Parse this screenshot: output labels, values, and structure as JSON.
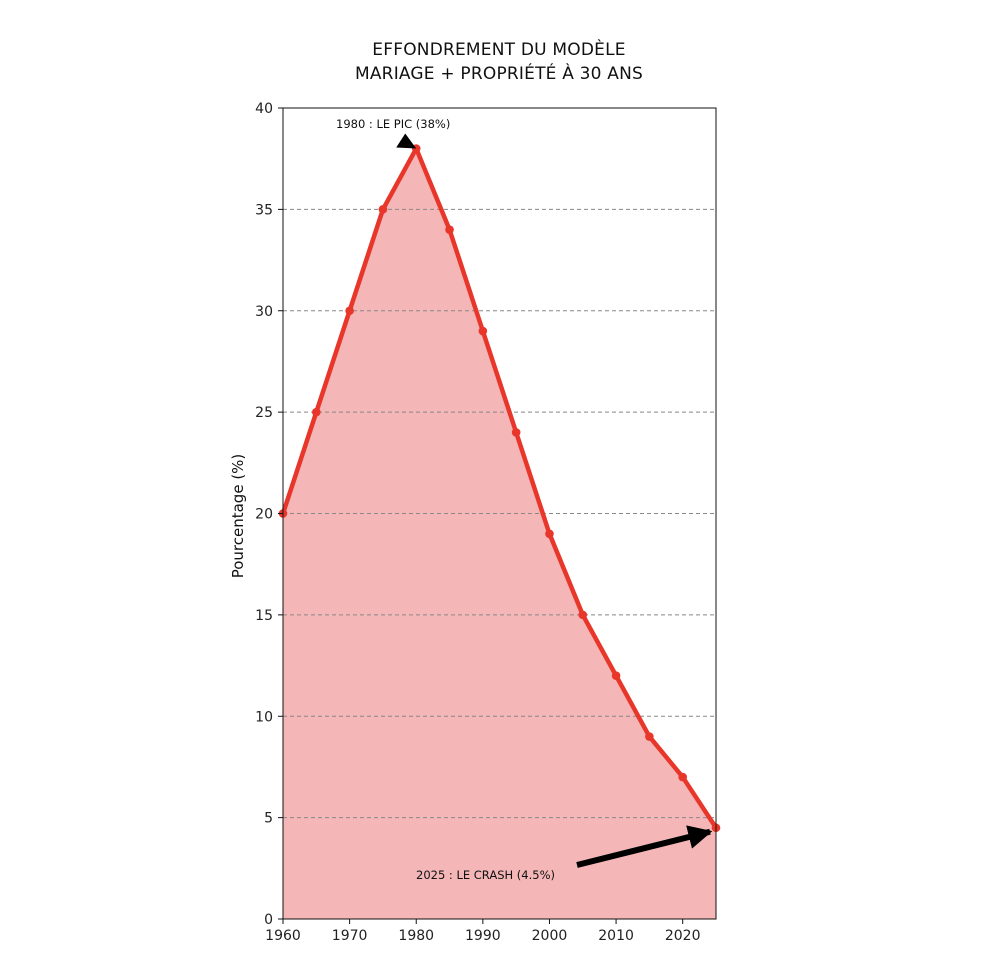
{
  "chart_data": {
    "type": "area",
    "title_lines": [
      "EFFONDREMENT DU MODÈLE",
      "MARIAGE + PROPRIÉTÉ À 30 ANS"
    ],
    "xlabel": "",
    "ylabel": "Pourcentage (%)",
    "xlim": [
      1960,
      2025
    ],
    "ylim": [
      0,
      40
    ],
    "xticks": [
      1960,
      1970,
      1980,
      1990,
      2000,
      2010,
      2020
    ],
    "yticks": [
      0,
      5,
      10,
      15,
      20,
      25,
      30,
      35,
      40
    ],
    "grid": "horizontal dashed",
    "series": [
      {
        "x": [
          1960,
          1965,
          1970,
          1975,
          1980,
          1985,
          1990,
          1995,
          2000,
          2005,
          2010,
          2015,
          2020,
          2025
        ],
        "y": [
          20,
          25,
          30,
          35,
          38,
          34,
          29,
          24,
          19,
          15,
          12,
          9,
          7,
          4.5
        ]
      }
    ],
    "annotations": [
      {
        "text": "1980 : LE PIC (38%)",
        "x": 1980,
        "y": 38
      },
      {
        "text": "2025 : LE CRASH (4.5%)",
        "x": 2025,
        "y": 4.5
      }
    ],
    "colors": {
      "line": "#e8372a",
      "fill": "#f4b6b6",
      "arrow": "#000000",
      "grid": "#888888"
    }
  }
}
